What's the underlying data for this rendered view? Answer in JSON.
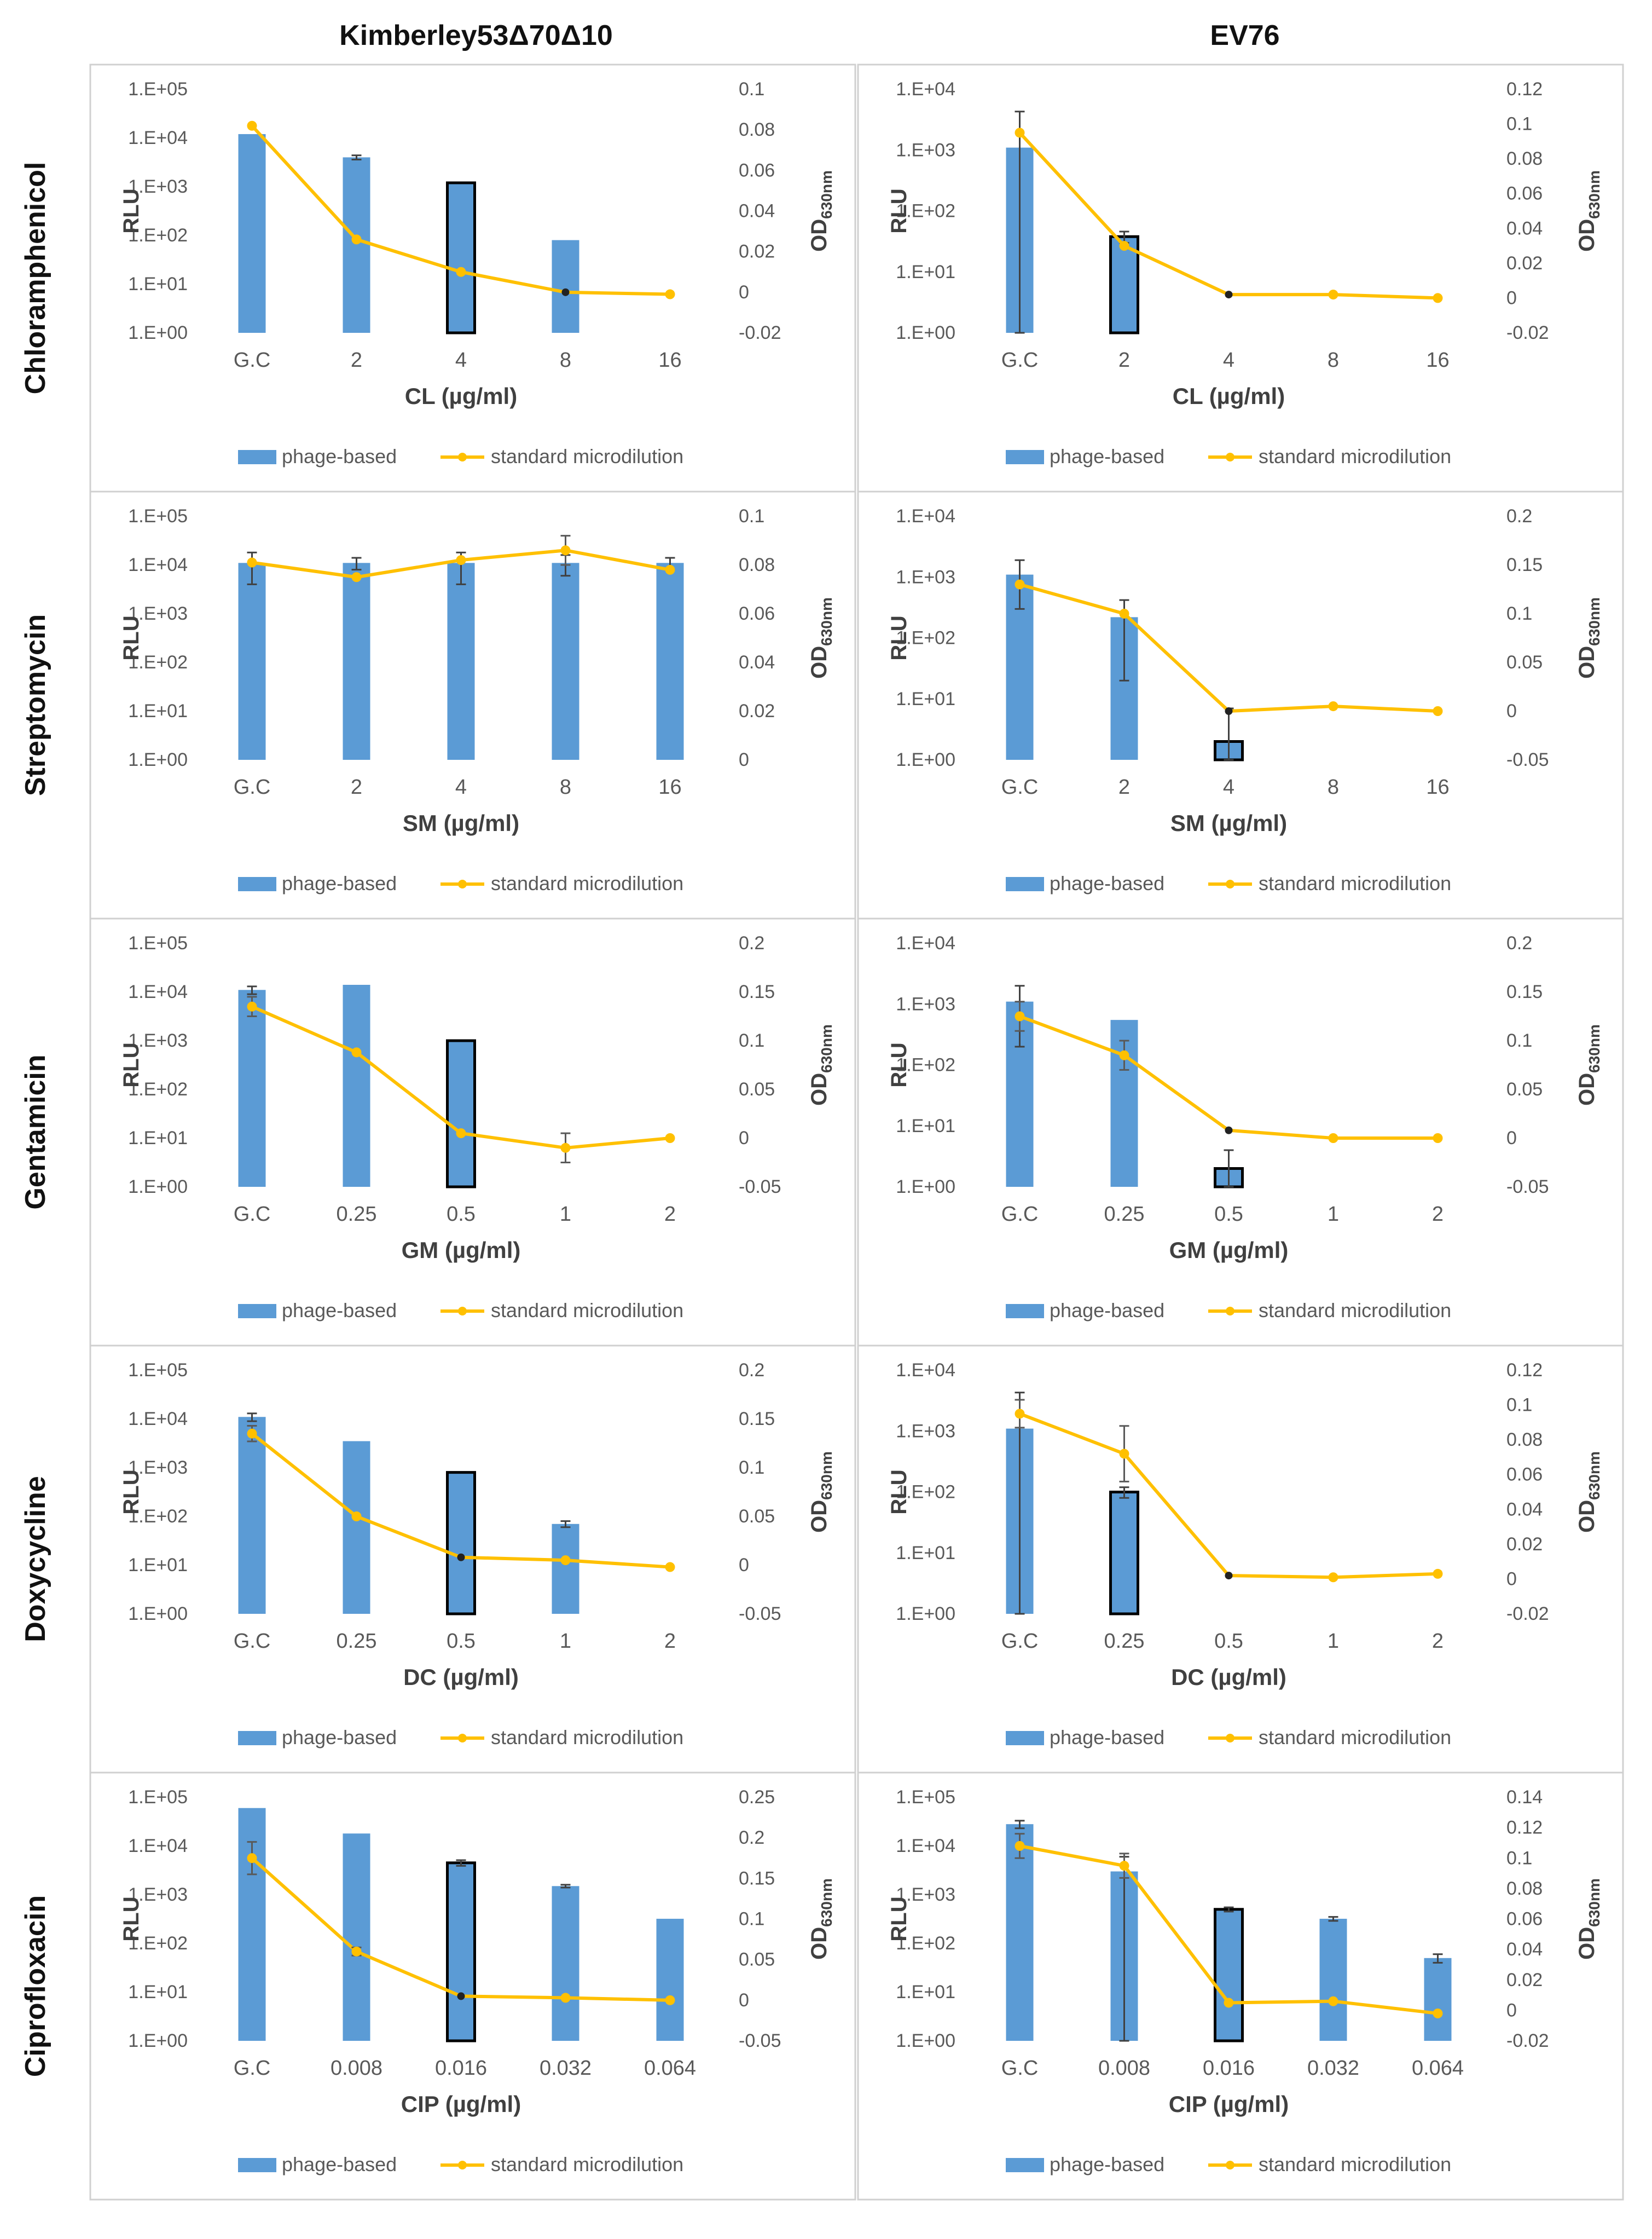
{
  "column_titles": [
    "Kimberley53Δ70Δ10",
    "EV76"
  ],
  "row_titles": [
    "Chloramphenicol",
    "Streptomycin",
    "Gentamicin",
    "Doxycycline",
    "Ciprofloxacin"
  ],
  "y_left_label": "RLU",
  "y_right_label_main": "OD",
  "y_right_label_sub": "630nm",
  "legend": {
    "bar": "phage-based",
    "line": "standard microdilution"
  },
  "colors": {
    "bar": "#5b9bd5",
    "line": "#ffc000",
    "highlight_edge": "#000000",
    "frame": "#d0d0d0"
  },
  "chart_data": [
    {
      "type": "bar+line",
      "strain": "Kimberley53Δ70Δ10",
      "antibiotic": "Chloramphenicol",
      "xlabel": "CL (µg/ml)",
      "categories": [
        "G.C",
        "2",
        "4",
        "8",
        "16"
      ],
      "left_ticks": [
        "1.E+00",
        "1.E+01",
        "1.E+02",
        "1.E+03",
        "1.E+04",
        "1.E+05"
      ],
      "left_max_exp": 5,
      "bar_values": [
        12000,
        4000,
        1200,
        80,
        null
      ],
      "bar_err": [
        0,
        400,
        0,
        0,
        0
      ],
      "highlight": 2,
      "line_values": [
        0.082,
        0.026,
        0.01,
        0.0,
        -0.001
      ],
      "line_err": [
        0,
        0,
        0,
        0,
        0
      ],
      "line_dark": [
        3
      ],
      "right_ticks": [
        "-0.02",
        "0",
        "0.02",
        "0.04",
        "0.06",
        "0.08",
        "0.1"
      ],
      "right_min": -0.02,
      "right_max": 0.1
    },
    {
      "type": "bar+line",
      "strain": "EV76",
      "antibiotic": "Chloramphenicol",
      "xlabel": "CL (µg/ml)",
      "categories": [
        "G.C",
        "2",
        "4",
        "8",
        "16"
      ],
      "left_ticks": [
        "1.E+00",
        "1.E+01",
        "1.E+02",
        "1.E+03",
        "1.E+04"
      ],
      "left_max_exp": 4,
      "bar_values": [
        1100,
        38,
        null,
        null,
        null
      ],
      "bar_err": [
        3200,
        8,
        0,
        0,
        0
      ],
      "highlight": 1,
      "line_values": [
        0.095,
        0.03,
        0.002,
        0.002,
        0.0
      ],
      "line_err": [
        0,
        0,
        0,
        0,
        0
      ],
      "line_dark": [
        2
      ],
      "right_ticks": [
        "-0.02",
        "0",
        "0.02",
        "0.04",
        "0.06",
        "0.08",
        "0.1",
        "0.12"
      ],
      "right_min": -0.02,
      "right_max": 0.12
    },
    {
      "type": "bar+line",
      "strain": "Kimberley53Δ70Δ10",
      "antibiotic": "Streptomycin",
      "xlabel": "SM (µg/ml)",
      "categories": [
        "G.C",
        "2",
        "4",
        "8",
        "16"
      ],
      "left_ticks": [
        "1.E+00",
        "1.E+01",
        "1.E+02",
        "1.E+03",
        "1.E+04",
        "1.E+05"
      ],
      "left_max_exp": 5,
      "bar_values": [
        11000,
        11000,
        11000,
        11000,
        11000
      ],
      "bar_err": [
        7000,
        3000,
        7000,
        5000,
        3000
      ],
      "highlight": -1,
      "line_values": [
        0.081,
        0.075,
        0.082,
        0.086,
        0.078
      ],
      "line_err": [
        0,
        0,
        0,
        0.006,
        0
      ],
      "line_dark": [],
      "right_ticks": [
        "0",
        "0.02",
        "0.04",
        "0.06",
        "0.08",
        "0.1"
      ],
      "right_min": 0,
      "right_max": 0.1
    },
    {
      "type": "bar+line",
      "strain": "EV76",
      "antibiotic": "Streptomycin",
      "xlabel": "SM (µg/ml)",
      "categories": [
        "G.C",
        "2",
        "4",
        "8",
        "16"
      ],
      "left_ticks": [
        "1.E+00",
        "1.E+01",
        "1.E+02",
        "1.E+03",
        "1.E+04"
      ],
      "left_max_exp": 4,
      "bar_values": [
        1100,
        220,
        2,
        null,
        null
      ],
      "bar_err": [
        800,
        200,
        5,
        0,
        0
      ],
      "highlight": 2,
      "line_values": [
        0.13,
        0.1,
        0.0,
        0.005,
        0.0
      ],
      "line_err": [
        0,
        0,
        0,
        0,
        0
      ],
      "line_dark": [
        2
      ],
      "right_ticks": [
        "-0.05",
        "0",
        "0.05",
        "0.1",
        "0.15",
        "0.2"
      ],
      "right_min": -0.05,
      "right_max": 0.2
    },
    {
      "type": "bar+line",
      "strain": "Kimberley53Δ70Δ10",
      "antibiotic": "Gentamicin",
      "xlabel": "GM (µg/ml)",
      "categories": [
        "G.C",
        "0.25",
        "0.5",
        "1",
        "2"
      ],
      "left_ticks": [
        "1.E+00",
        "1.E+01",
        "1.E+02",
        "1.E+03",
        "1.E+04",
        "1.E+05"
      ],
      "left_max_exp": 5,
      "bar_values": [
        11000,
        14000,
        1000,
        null,
        null
      ],
      "bar_err": [
        2000,
        0,
        0,
        0,
        0
      ],
      "highlight": 2,
      "line_values": [
        0.135,
        0.088,
        0.005,
        -0.01,
        0.0
      ],
      "line_err": [
        0.01,
        0,
        0,
        0.015,
        0
      ],
      "line_dark": [],
      "right_ticks": [
        "-0.05",
        "0",
        "0.05",
        "0.1",
        "0.15",
        "0.2"
      ],
      "right_min": -0.05,
      "right_max": 0.2
    },
    {
      "type": "bar+line",
      "strain": "EV76",
      "antibiotic": "Gentamicin",
      "xlabel": "GM (µg/ml)",
      "categories": [
        "G.C",
        "0.25",
        "0.5",
        "1",
        "2"
      ],
      "left_ticks": [
        "1.E+00",
        "1.E+01",
        "1.E+02",
        "1.E+03",
        "1.E+04"
      ],
      "left_max_exp": 4,
      "bar_values": [
        1100,
        550,
        2,
        null,
        null
      ],
      "bar_err": [
        900,
        0,
        2,
        0,
        0
      ],
      "highlight": 2,
      "line_values": [
        0.125,
        0.085,
        0.008,
        0.0,
        0.0
      ],
      "line_err": [
        0.015,
        0.015,
        0,
        0,
        0
      ],
      "line_dark": [
        2
      ],
      "right_ticks": [
        "-0.05",
        "0",
        "0.05",
        "0.1",
        "0.15",
        "0.2"
      ],
      "right_min": -0.05,
      "right_max": 0.2
    },
    {
      "type": "bar+line",
      "strain": "Kimberley53Δ70Δ10",
      "antibiotic": "Doxycycline",
      "xlabel": "DC (µg/ml)",
      "categories": [
        "G.C",
        "0.25",
        "0.5",
        "1",
        "2"
      ],
      "left_ticks": [
        "1.E+00",
        "1.E+01",
        "1.E+02",
        "1.E+03",
        "1.E+04",
        "1.E+05"
      ],
      "left_max_exp": 5,
      "bar_values": [
        11000,
        3500,
        800,
        70,
        null
      ],
      "bar_err": [
        2000,
        0,
        0,
        10,
        0
      ],
      "highlight": 2,
      "line_values": [
        0.135,
        0.05,
        0.008,
        0.005,
        -0.002
      ],
      "line_err": [
        0.008,
        0,
        0,
        0,
        0
      ],
      "line_dark": [
        2
      ],
      "right_ticks": [
        "-0.05",
        "0",
        "0.05",
        "0.1",
        "0.15",
        "0.2"
      ],
      "right_min": -0.05,
      "right_max": 0.2
    },
    {
      "type": "bar+line",
      "strain": "EV76",
      "antibiotic": "Doxycycline",
      "xlabel": "DC (µg/ml)",
      "categories": [
        "G.C",
        "0.25",
        "0.5",
        "1",
        "2"
      ],
      "left_ticks": [
        "1.E+00",
        "1.E+01",
        "1.E+02",
        "1.E+03",
        "1.E+04"
      ],
      "left_max_exp": 4,
      "bar_values": [
        1100,
        100,
        null,
        null,
        null
      ],
      "bar_err": [
        3200,
        20,
        0,
        0,
        0
      ],
      "highlight": 1,
      "line_values": [
        0.095,
        0.072,
        0.002,
        0.001,
        0.003
      ],
      "line_err": [
        0.008,
        0.016,
        0,
        0,
        0
      ],
      "line_dark": [
        2
      ],
      "right_ticks": [
        "-0.02",
        "0",
        "0.02",
        "0.04",
        "0.06",
        "0.08",
        "0.1",
        "0.12"
      ],
      "right_min": -0.02,
      "right_max": 0.12
    },
    {
      "type": "bar+line",
      "strain": "Kimberley53Δ70Δ10",
      "antibiotic": "Ciprofloxacin",
      "xlabel": "CIP (µg/ml)",
      "categories": [
        "G.C",
        "0.008",
        "0.016",
        "0.032",
        "0.064"
      ],
      "left_ticks": [
        "1.E+00",
        "1.E+01",
        "1.E+02",
        "1.E+03",
        "1.E+04",
        "1.E+05"
      ],
      "left_max_exp": 5,
      "bar_values": [
        60000,
        18000,
        4500,
        1500,
        320
      ],
      "bar_err": [
        0,
        0,
        600,
        100,
        0
      ],
      "highlight": 2,
      "line_values": [
        0.175,
        0.06,
        0.005,
        0.003,
        0.0
      ],
      "line_err": [
        0.02,
        0.005,
        0,
        0,
        0
      ],
      "line_dark": [
        2
      ],
      "right_ticks": [
        "-0.05",
        "0",
        "0.05",
        "0.1",
        "0.15",
        "0.2",
        "0.25"
      ],
      "right_min": -0.05,
      "right_max": 0.25
    },
    {
      "type": "bar+line",
      "strain": "EV76",
      "antibiotic": "Ciprofloxacin",
      "xlabel": "CIP (µg/ml)",
      "categories": [
        "G.C",
        "0.008",
        "0.016",
        "0.032",
        "0.064"
      ],
      "left_ticks": [
        "1.E+00",
        "1.E+01",
        "1.E+02",
        "1.E+03",
        "1.E+04",
        "1.E+05"
      ],
      "left_max_exp": 5,
      "bar_values": [
        28000,
        3000,
        500,
        320,
        50
      ],
      "bar_err": [
        5000,
        3000,
        50,
        30,
        10
      ],
      "highlight": 2,
      "line_values": [
        0.108,
        0.095,
        0.005,
        0.006,
        -0.002
      ],
      "line_err": [
        0.008,
        0.008,
        0,
        0,
        0
      ],
      "line_dark": [],
      "right_ticks": [
        "-0.02",
        "0",
        "0.02",
        "0.04",
        "0.06",
        "0.08",
        "0.1",
        "0.12",
        "0.14"
      ],
      "right_min": -0.02,
      "right_max": 0.14
    }
  ]
}
